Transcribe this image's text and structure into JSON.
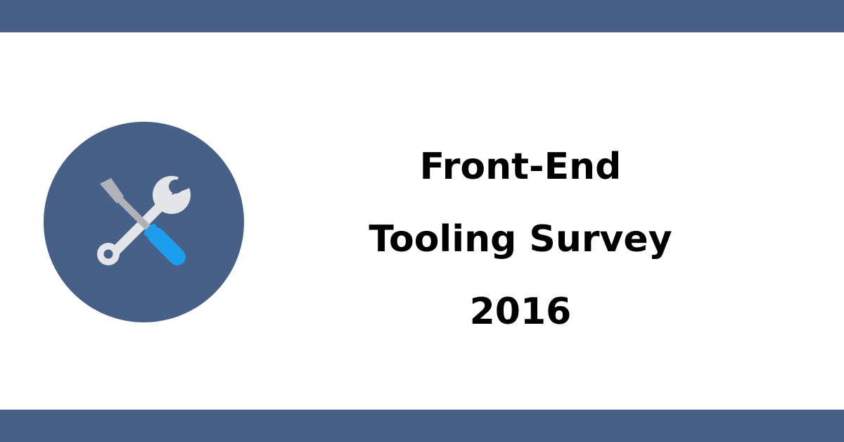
{
  "colors": {
    "band": "#476088",
    "badge": "#476088",
    "tool_metal": "#e3e5e8",
    "screwdriver_tip": "#aeb3b8",
    "screwdriver_handle": "#1d9ded",
    "title_text": "#000000",
    "background": "#ffffff"
  },
  "badge": {
    "icon": "tools-icon",
    "parts": [
      "wrench-icon",
      "screwdriver-icon"
    ]
  },
  "title": {
    "lines": [
      "Front-End",
      "Tooling Survey",
      "2016"
    ]
  }
}
